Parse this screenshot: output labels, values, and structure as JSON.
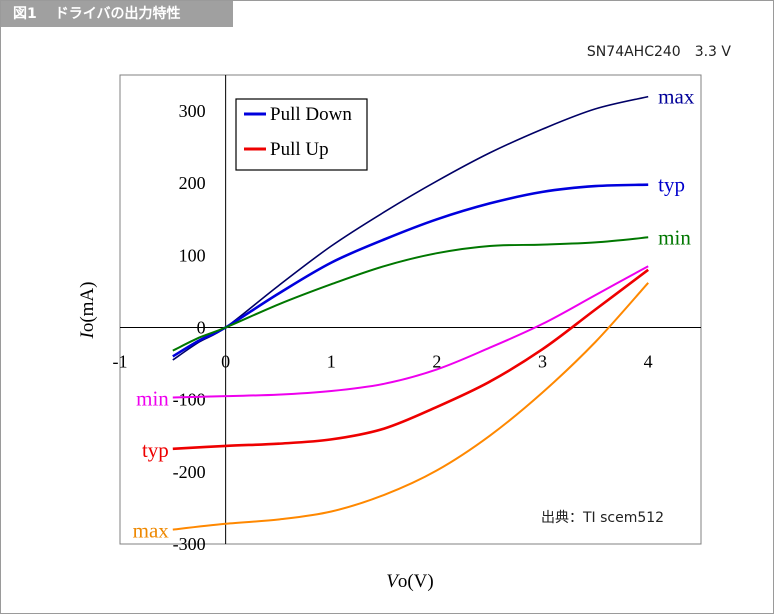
{
  "header": {
    "figure_number": "図1",
    "figure_title": "ドライバの出力特性"
  },
  "part_label": "SN74AHC240　3.3 V",
  "chart_data": {
    "type": "line",
    "title": "",
    "xlabel": "Vo(V)",
    "xlabel_italic": "V",
    "xlabel_rest": "o(V)",
    "ylabel": "Io(mA)",
    "ylabel_italic": "I",
    "ylabel_rest": "o(mA)",
    "xlim": [
      -1,
      4.5
    ],
    "ylim": [
      -300,
      350
    ],
    "xticks": [
      -1,
      0,
      1,
      2,
      3,
      4
    ],
    "yticks": [
      -300,
      -200,
      -100,
      0,
      100,
      200,
      300
    ],
    "grid": false,
    "legend": {
      "placement": "top-left",
      "entries": [
        {
          "label": "Pull Down",
          "color": "#0000dd"
        },
        {
          "label": "Pull Up",
          "color": "#ee0000"
        }
      ]
    },
    "source_note": "出典：TI scem512",
    "series": [
      {
        "name": "max",
        "group": "pull-down",
        "color": "#000066",
        "label_color": "#000099",
        "x": [
          -0.5,
          -0.25,
          0,
          0.5,
          1,
          1.5,
          2,
          2.5,
          3,
          3.5,
          4
        ],
        "y": [
          -45,
          -20,
          0,
          58,
          113,
          160,
          203,
          242,
          275,
          303,
          320
        ]
      },
      {
        "name": "typ",
        "group": "pull-down",
        "color": "#0000dd",
        "label_color": "#0000cc",
        "x": [
          -0.5,
          -0.25,
          0,
          0.5,
          1,
          1.5,
          2,
          2.5,
          3,
          3.5,
          4
        ],
        "y": [
          -40,
          -18,
          0,
          47,
          90,
          122,
          150,
          172,
          188,
          196,
          198
        ]
      },
      {
        "name": "min",
        "group": "pull-down",
        "color": "#007700",
        "label_color": "#007700",
        "x": [
          -0.5,
          -0.25,
          0,
          0.5,
          1,
          1.5,
          2,
          2.5,
          3,
          3.5,
          4
        ],
        "y": [
          -32,
          -14,
          0,
          32,
          60,
          85,
          103,
          113,
          115,
          118,
          125
        ]
      },
      {
        "name": "min",
        "group": "pull-up",
        "color": "#ee00ee",
        "label_color": "#ee00ee",
        "x": [
          -0.5,
          0,
          0.5,
          1,
          1.5,
          2,
          2.5,
          3,
          3.5,
          4
        ],
        "y": [
          -97,
          -95,
          -93,
          -88,
          -78,
          -58,
          -28,
          5,
          45,
          85
        ]
      },
      {
        "name": "typ",
        "group": "pull-up",
        "color": "#ee0000",
        "label_color": "#ee0000",
        "x": [
          -0.5,
          0,
          0.5,
          1,
          1.5,
          2,
          2.5,
          3,
          3.5,
          4
        ],
        "y": [
          -168,
          -164,
          -161,
          -155,
          -140,
          -110,
          -75,
          -30,
          25,
          80
        ]
      },
      {
        "name": "max",
        "group": "pull-up",
        "color": "#ff8800",
        "label_color": "#ee8800",
        "x": [
          -0.5,
          0,
          0.5,
          1,
          1.5,
          2,
          2.5,
          3,
          3.5,
          4
        ],
        "y": [
          -280,
          -272,
          -266,
          -255,
          -232,
          -198,
          -150,
          -90,
          -20,
          62
        ]
      }
    ]
  }
}
